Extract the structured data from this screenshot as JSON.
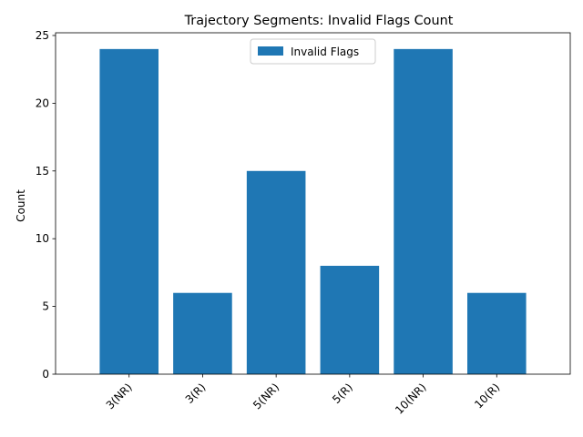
{
  "chart_data": {
    "type": "bar",
    "title": "Trajectory Segments: Invalid Flags Count",
    "xlabel": "",
    "ylabel": "Count",
    "categories": [
      "3(NR)",
      "3(R)",
      "5(NR)",
      "5(R)",
      "10(NR)",
      "10(R)"
    ],
    "series": [
      {
        "name": "Invalid Flags",
        "values": [
          24,
          6,
          15,
          8,
          24,
          6
        ],
        "color": "#1f77b4"
      }
    ],
    "ylim": [
      0,
      25.2
    ],
    "yticks": [
      0,
      5,
      10,
      15,
      20,
      25
    ],
    "ytick_labels": [
      "0",
      "5",
      "10",
      "15",
      "20",
      "25"
    ],
    "grid": false,
    "legend_position": "top-center",
    "xtick_rotation": "45"
  }
}
